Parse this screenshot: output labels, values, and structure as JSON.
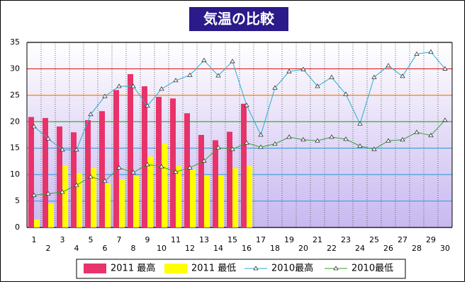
{
  "chart_data": {
    "type": "bar",
    "title": "気温の比較",
    "categories": [
      "1",
      "2",
      "3",
      "4",
      "5",
      "6",
      "7",
      "8",
      "9",
      "10",
      "11",
      "12",
      "13",
      "14",
      "15",
      "16",
      "17",
      "18",
      "19",
      "20",
      "21",
      "22",
      "23",
      "24",
      "25",
      "26",
      "27",
      "28",
      "29",
      "30"
    ],
    "series": [
      {
        "name": "2011 最高",
        "type": "bar",
        "color": "#e8336a",
        "values": [
          20.9,
          20.7,
          19.1,
          18.0,
          20.3,
          22.0,
          26.0,
          29.0,
          26.7,
          24.7,
          24.4,
          21.6,
          17.5,
          16.5,
          18.1,
          23.4,
          null,
          null,
          null,
          null,
          null,
          null,
          null,
          null,
          null,
          null,
          null,
          null,
          null,
          null
        ]
      },
      {
        "name": "2011 最低",
        "type": "bar",
        "color": "#ffff00",
        "values": [
          1.5,
          4.5,
          11.7,
          10.3,
          11.2,
          8.3,
          9.1,
          9.7,
          13.4,
          15.8,
          11.6,
          10.9,
          9.9,
          9.9,
          11.2,
          11.6,
          null,
          null,
          null,
          null,
          null,
          null,
          null,
          null,
          null,
          null,
          null,
          null,
          null,
          null
        ]
      },
      {
        "name": "2010最高",
        "type": "line",
        "color": "#22b0d0",
        "values": [
          19.1,
          16.8,
          14.7,
          14.7,
          21.4,
          24.8,
          26.7,
          26.7,
          23.0,
          26.2,
          27.8,
          28.8,
          31.6,
          28.7,
          31.4,
          23.1,
          17.5,
          26.4,
          29.5,
          29.9,
          26.7,
          28.4,
          25.2,
          19.6,
          28.4,
          30.6,
          28.6,
          32.8,
          33.2,
          30.0
        ]
      },
      {
        "name": "2010最低",
        "type": "line",
        "color": "#30a030",
        "values": [
          6.1,
          6.4,
          6.7,
          8.0,
          9.6,
          8.8,
          11.3,
          10.4,
          11.9,
          11.5,
          10.5,
          11.3,
          12.6,
          15.1,
          14.8,
          16.0,
          15.2,
          15.8,
          17.1,
          16.6,
          16.4,
          17.1,
          16.7,
          15.4,
          14.8,
          16.4,
          16.6,
          18.0,
          17.4,
          20.3
        ]
      }
    ],
    "ylim": [
      0,
      35
    ],
    "yticks": [
      0,
      5,
      10,
      15,
      20,
      25,
      30,
      35
    ],
    "grid": true,
    "grid_colors": [
      "#000000",
      "#3fa0e0",
      "#3fa0e0",
      "#3fa0e0",
      "#30b030",
      "#ff8000",
      "#e02020",
      "#000000"
    ],
    "legend": "bottom"
  }
}
